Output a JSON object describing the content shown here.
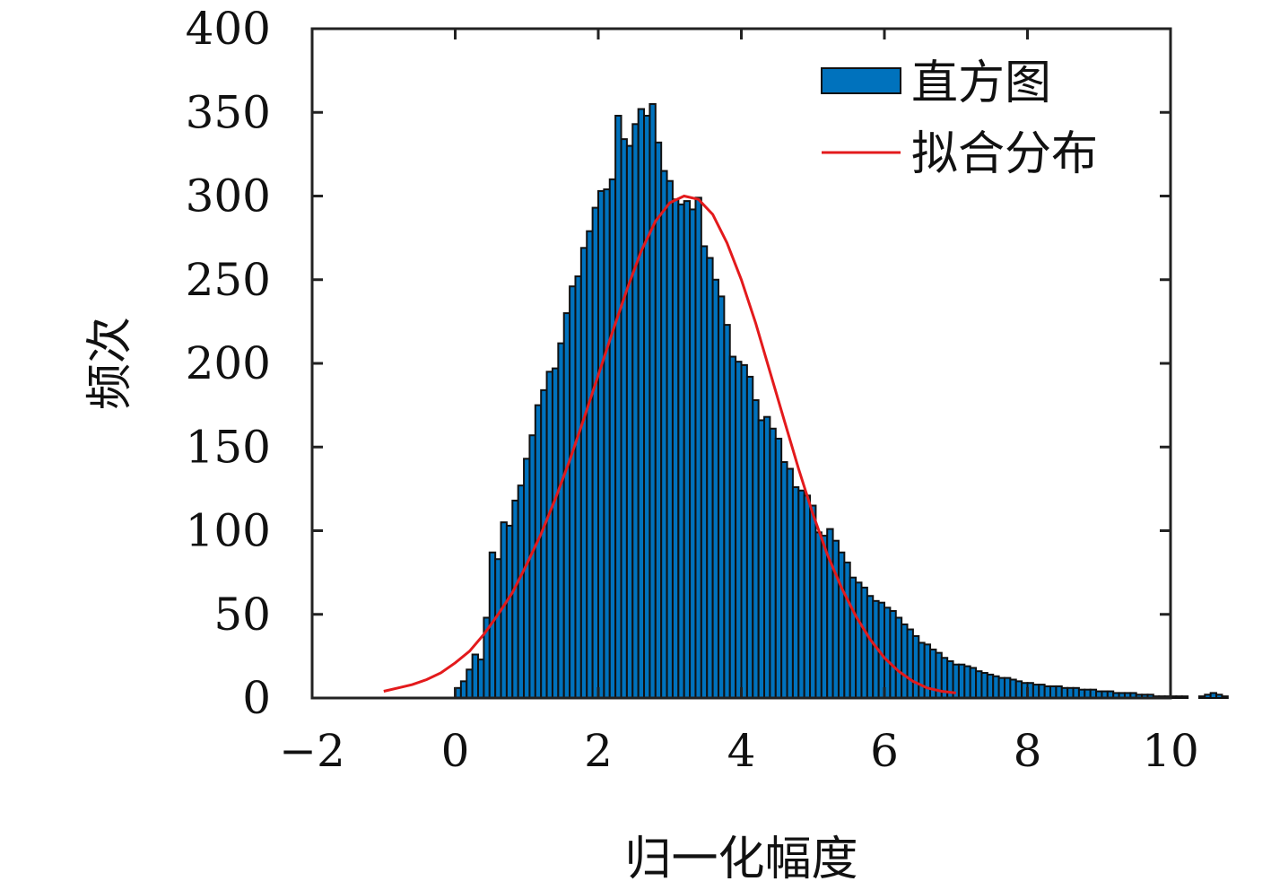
{
  "chart_data": {
    "type": "bar",
    "title": "",
    "xlabel": "归一化幅度",
    "ylabel": "频次",
    "xlim": [
      -2,
      10
    ],
    "ylim": [
      0,
      400
    ],
    "x_ticks": [
      -2,
      0,
      2,
      4,
      6,
      8,
      10
    ],
    "y_ticks": [
      0,
      50,
      100,
      150,
      200,
      250,
      300,
      350,
      400
    ],
    "x_tick_labels": [
      "−2",
      "0",
      "2",
      "4",
      "6",
      "8",
      "10"
    ],
    "y_tick_labels": [
      "0",
      "50",
      "100",
      "150",
      "200",
      "250",
      "300",
      "350",
      "400"
    ],
    "grid": false,
    "legend": {
      "position": "top-right",
      "entries": [
        {
          "label": "直方图",
          "kind": "bar"
        },
        {
          "label": "拟合分布",
          "kind": "line"
        }
      ]
    },
    "colors": {
      "bar_fill": "#0072bd",
      "bar_edge": "#111111",
      "fit_line": "#e31a1c",
      "axis": "#222222"
    },
    "series": [
      {
        "name": "直方图",
        "type": "bar",
        "bin_width": 0.08,
        "x_start": 0.0,
        "values": [
          6,
          10,
          17,
          26,
          23,
          48,
          87,
          83,
          105,
          103,
          118,
          127,
          143,
          157,
          175,
          184,
          195,
          197,
          212,
          230,
          246,
          252,
          269,
          279,
          293,
          303,
          304,
          310,
          348,
          334,
          330,
          343,
          352,
          348,
          355,
          332,
          315,
          309,
          298,
          295,
          297,
          292,
          299,
          270,
          263,
          250,
          240,
          223,
          204,
          201,
          199,
          192,
          178,
          166,
          168,
          161,
          155,
          141,
          137,
          126,
          124,
          121,
          115,
          99,
          97,
          101,
          94,
          87,
          81,
          72,
          69,
          66,
          61,
          58,
          57,
          54,
          52,
          48,
          44,
          41,
          37,
          33,
          32,
          29,
          27,
          24,
          22,
          20,
          20,
          19,
          18,
          16,
          15,
          14,
          13,
          12,
          12,
          11,
          10,
          9,
          9,
          8,
          8,
          7,
          7,
          7,
          6,
          6,
          6,
          5,
          5,
          5,
          4,
          4,
          4,
          3,
          3,
          3,
          3,
          2,
          2,
          2,
          1,
          1,
          1,
          1,
          1,
          1,
          0,
          0,
          1,
          2,
          3,
          2,
          1
        ]
      },
      {
        "name": "拟合分布",
        "type": "line",
        "x": [
          -1.0,
          -0.8,
          -0.6,
          -0.4,
          -0.2,
          0.0,
          0.2,
          0.4,
          0.6,
          0.8,
          1.0,
          1.2,
          1.4,
          1.6,
          1.8,
          2.0,
          2.2,
          2.4,
          2.6,
          2.8,
          3.0,
          3.2,
          3.4,
          3.6,
          3.8,
          4.0,
          4.2,
          4.4,
          4.6,
          4.8,
          5.0,
          5.2,
          5.4,
          5.6,
          5.8,
          6.0,
          6.2,
          6.4,
          6.6,
          6.8,
          7.0
        ],
        "y": [
          4,
          6,
          8,
          11,
          15,
          21,
          28,
          38,
          50,
          63,
          80,
          98,
          119,
          142,
          167,
          193,
          219,
          244,
          267,
          285,
          296,
          300,
          298,
          289,
          272,
          250,
          224,
          195,
          166,
          137,
          110,
          86,
          66,
          49,
          35,
          24,
          16,
          10,
          6,
          4,
          3
        ]
      }
    ]
  }
}
